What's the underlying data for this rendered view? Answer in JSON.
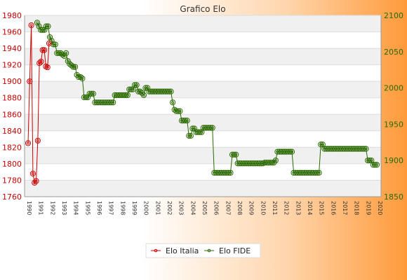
{
  "chart_data": {
    "type": "line",
    "title": "Grafico Elo",
    "left_axis": {
      "ylim": [
        1760,
        1980
      ],
      "ticks": [
        1760,
        1780,
        1800,
        1820,
        1840,
        1860,
        1880,
        1900,
        1920,
        1940,
        1960,
        1980
      ],
      "color": "#cc0000"
    },
    "right_axis": {
      "ylim": [
        1850,
        2100
      ],
      "ticks": [
        1850,
        1900,
        1950,
        2000,
        2050,
        2100
      ],
      "color": "#2a6a00"
    },
    "x_tick_labels": [
      "1990",
      "1991",
      "1992",
      "1993",
      "1994",
      "1995",
      "1996",
      "1997",
      "1998",
      "1999",
      "2000",
      "2001",
      "2002",
      "2003",
      "2004",
      "2005",
      "2006",
      "2007",
      "2008",
      "2009",
      "2010",
      "2011",
      "2012",
      "2013",
      "2014",
      "2015",
      "2016",
      "2017",
      "2018",
      "2019",
      "2020"
    ],
    "legend_position": "bottom-center",
    "series": [
      {
        "name": "Elo Italia",
        "axis": "left",
        "color": "#cc0000",
        "values": [
          1825,
          1900,
          1968,
          1788,
          1777,
          1779,
          1828,
          1922,
          1924,
          1938,
          1938,
          1918,
          1917,
          1946
        ]
      },
      {
        "name": "Elo FIDE",
        "axis": "right",
        "color": "#2a6a00",
        "values": [
          2090,
          2085,
          2080,
          2080,
          2080,
          2085,
          2085,
          2070,
          2065,
          2060,
          2060,
          2048,
          2048,
          2048,
          2046,
          2044,
          2048,
          2037,
          2033,
          2031,
          2029,
          2029,
          2018,
          2015,
          2015,
          2013,
          1987,
          1987,
          1987,
          1992,
          1992,
          1992,
          1980,
          1980,
          1980,
          1980,
          1980,
          1980,
          1980,
          1980,
          1980,
          1980,
          1980,
          1990,
          1990,
          1990,
          1990,
          1990,
          1990,
          1990,
          1990,
          1998,
          1998,
          1998,
          2004,
          2004,
          1995,
          1995,
          1993,
          1990,
          2000,
          2000,
          1995,
          1995,
          1995,
          1995,
          1995,
          1995,
          1995,
          1995,
          1995,
          1995,
          1995,
          1995,
          1995,
          1980,
          1970,
          1968,
          1968,
          1968,
          1955,
          1955,
          1955,
          1955,
          1934,
          1934,
          1944,
          1944,
          1939,
          1939,
          1939,
          1939,
          1945,
          1945,
          1945,
          1945,
          1945,
          1945,
          1883,
          1883,
          1883,
          1883,
          1883,
          1883,
          1883,
          1883,
          1883,
          1883,
          1908,
          1908,
          1908,
          1896,
          1896,
          1896,
          1896,
          1896,
          1896,
          1896,
          1896,
          1896,
          1896,
          1896,
          1896,
          1896,
          1896,
          1896,
          1897,
          1897,
          1897,
          1897,
          1897,
          1897,
          1900,
          1912,
          1912,
          1912,
          1912,
          1912,
          1912,
          1912,
          1912,
          1912,
          1883,
          1883,
          1883,
          1883,
          1883,
          1883,
          1883,
          1883,
          1883,
          1883,
          1883,
          1883,
          1883,
          1883,
          1883,
          1922,
          1922,
          1916,
          1916,
          1916,
          1916,
          1916,
          1916,
          1916,
          1916,
          1916,
          1916,
          1916,
          1916,
          1916,
          1916,
          1916,
          1916,
          1916,
          1916,
          1916,
          1916,
          1916,
          1916,
          1916,
          1916,
          1900,
          1900,
          1900,
          1894,
          1894,
          1894
        ]
      }
    ]
  }
}
